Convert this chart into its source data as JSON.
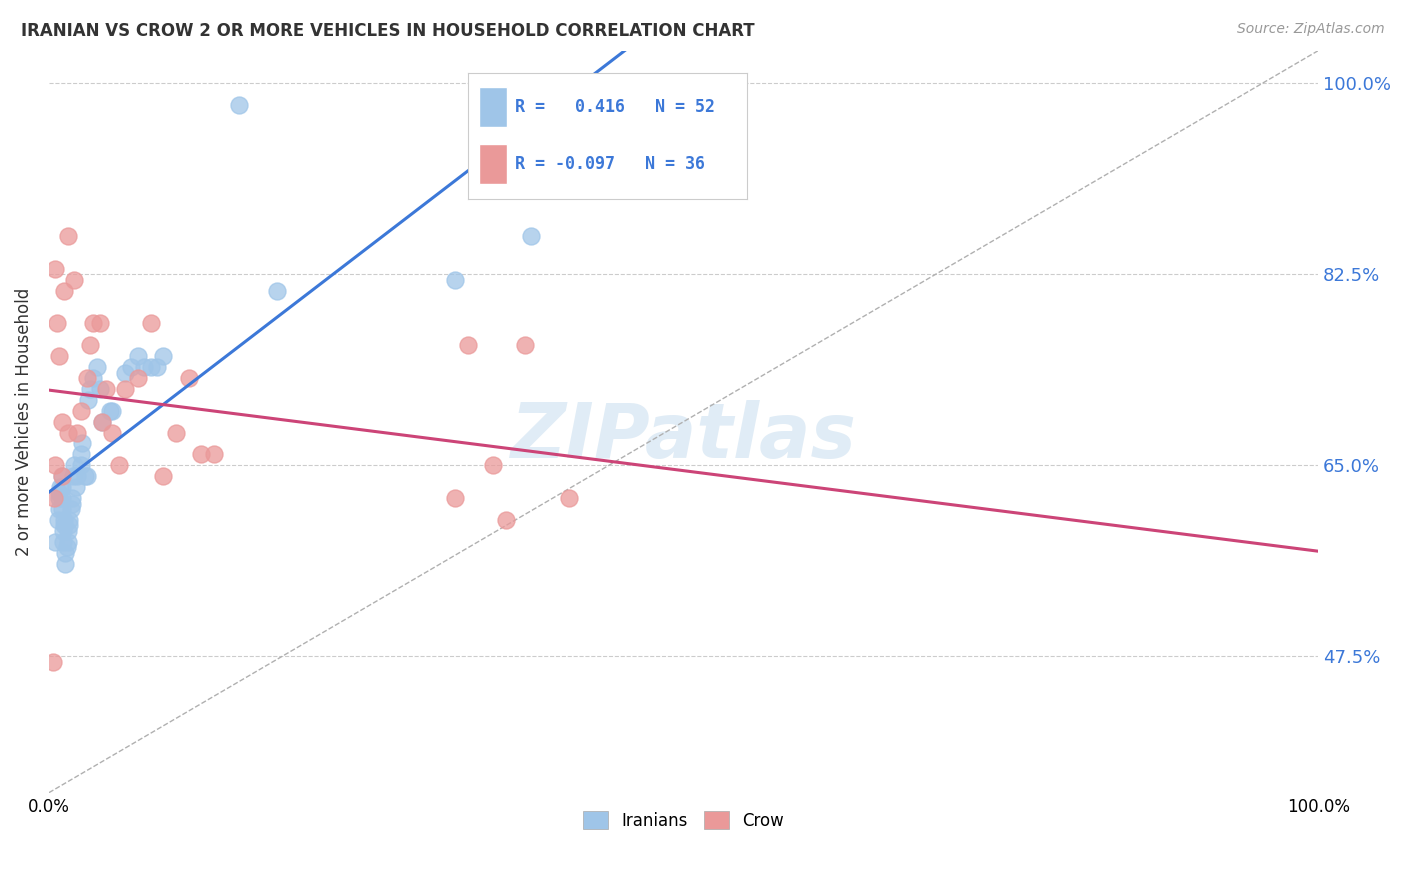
{
  "title": "IRANIAN VS CROW 2 OR MORE VEHICLES IN HOUSEHOLD CORRELATION CHART",
  "source": "Source: ZipAtlas.com",
  "ylabel": "2 or more Vehicles in Household",
  "background_color": "#ffffff",
  "watermark": "ZIPatlas",
  "legend_iranian_r": "0.416",
  "legend_iranian_n": "52",
  "legend_crow_r": "-0.097",
  "legend_crow_n": "36",
  "iranian_color": "#9fc5e8",
  "crow_color": "#ea9999",
  "iranian_line_color": "#3c78d8",
  "crow_line_color": "#cc4477",
  "ref_line_color": "#b0b0b0",
  "iranians_x": [
    0.005,
    0.007,
    0.008,
    0.008,
    0.008,
    0.009,
    0.01,
    0.01,
    0.01,
    0.01,
    0.011,
    0.011,
    0.012,
    0.012,
    0.013,
    0.013,
    0.014,
    0.015,
    0.015,
    0.016,
    0.016,
    0.017,
    0.018,
    0.018,
    0.019,
    0.02,
    0.021,
    0.022,
    0.025,
    0.025,
    0.026,
    0.028,
    0.03,
    0.031,
    0.032,
    0.035,
    0.038,
    0.04,
    0.042,
    0.048,
    0.05,
    0.06,
    0.065,
    0.07,
    0.075,
    0.08,
    0.085,
    0.09,
    0.15,
    0.18,
    0.32,
    0.38
  ],
  "iranians_y": [
    0.58,
    0.6,
    0.61,
    0.62,
    0.625,
    0.63,
    0.61,
    0.62,
    0.63,
    0.64,
    0.58,
    0.59,
    0.595,
    0.6,
    0.56,
    0.57,
    0.575,
    0.58,
    0.59,
    0.595,
    0.6,
    0.61,
    0.615,
    0.62,
    0.64,
    0.65,
    0.63,
    0.64,
    0.65,
    0.66,
    0.67,
    0.64,
    0.64,
    0.71,
    0.72,
    0.73,
    0.74,
    0.72,
    0.69,
    0.7,
    0.7,
    0.735,
    0.74,
    0.75,
    0.74,
    0.74,
    0.74,
    0.75,
    0.98,
    0.81,
    0.82,
    0.86
  ],
  "crow_x": [
    0.003,
    0.004,
    0.005,
    0.005,
    0.006,
    0.008,
    0.01,
    0.01,
    0.012,
    0.015,
    0.015,
    0.02,
    0.022,
    0.025,
    0.03,
    0.032,
    0.035,
    0.04,
    0.042,
    0.045,
    0.05,
    0.055,
    0.06,
    0.07,
    0.08,
    0.09,
    0.1,
    0.11,
    0.12,
    0.13,
    0.32,
    0.33,
    0.35,
    0.36,
    0.375,
    0.41
  ],
  "crow_y": [
    0.47,
    0.62,
    0.65,
    0.83,
    0.78,
    0.75,
    0.64,
    0.69,
    0.81,
    0.86,
    0.68,
    0.82,
    0.68,
    0.7,
    0.73,
    0.76,
    0.78,
    0.78,
    0.69,
    0.72,
    0.68,
    0.65,
    0.72,
    0.73,
    0.78,
    0.64,
    0.68,
    0.73,
    0.66,
    0.66,
    0.62,
    0.76,
    0.65,
    0.6,
    0.76,
    0.62
  ],
  "ymin": 0.35,
  "ymax": 1.03,
  "xmin": 0.0,
  "xmax": 1.0,
  "ytick_vals": [
    0.475,
    0.65,
    0.825,
    1.0
  ],
  "ytick_labels": [
    "47.5%",
    "65.0%",
    "82.5%",
    "100.0%"
  ],
  "xtick_vals": [
    0.0,
    1.0
  ],
  "xtick_labels": [
    "0.0%",
    "100.0%"
  ]
}
